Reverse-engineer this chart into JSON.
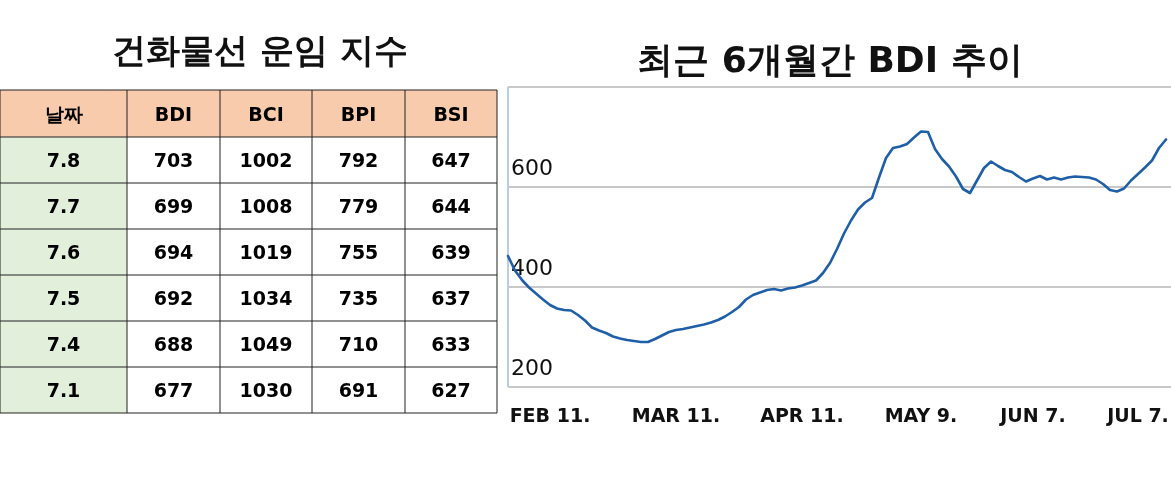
{
  "chart_data": [
    {
      "type": "heatmap",
      "title": "건화물선 운임 지수",
      "ylabel": "날짜",
      "categories": [
        "BDI",
        "BCI",
        "BPI",
        "BSI"
      ],
      "y_categories": [
        "7.8",
        "7.7",
        "7.6",
        "7.5",
        "7.4",
        "7.1"
      ],
      "cells": [
        [
          703,
          1002,
          792,
          647
        ],
        [
          699,
          1008,
          779,
          644
        ],
        [
          694,
          1019,
          755,
          639
        ],
        [
          692,
          1034,
          735,
          637
        ],
        [
          688,
          1049,
          710,
          633
        ],
        [
          677,
          1030,
          691,
          627
        ]
      ],
      "cell_labels": [
        [
          "703",
          "1002",
          "792",
          "647"
        ],
        [
          "699",
          "1008",
          "779",
          "644"
        ],
        [
          "694",
          "1019",
          "755",
          "639"
        ],
        [
          "692",
          "1034",
          "735",
          "637"
        ],
        [
          "688",
          "1049",
          "710",
          "633"
        ],
        [
          "677",
          "1030",
          "691",
          "627"
        ]
      ]
    },
    {
      "type": "line",
      "title": "최근 6개월간 BDI 추이",
      "ylim": [
        200,
        800
      ],
      "yticks": [
        200,
        400,
        600,
        {
          "value": 800,
          "label": null
        }
      ],
      "grid": "y",
      "marker": "none",
      "line_style": "solid",
      "categories": [
        null,
        null,
        null,
        null,
        null,
        null,
        "FEB 11.",
        null,
        null,
        null,
        null,
        null,
        null,
        null,
        null,
        null,
        null,
        null,
        null,
        null,
        null,
        null,
        null,
        null,
        "MAR 11.",
        null,
        null,
        null,
        null,
        null,
        null,
        null,
        null,
        null,
        null,
        null,
        null,
        null,
        null,
        null,
        null,
        null,
        "APR 11.",
        null,
        null,
        null,
        null,
        null,
        null,
        null,
        null,
        null,
        null,
        null,
        null,
        null,
        null,
        null,
        null,
        "MAY 9.",
        null,
        null,
        null,
        null,
        null,
        null,
        null,
        null,
        null,
        null,
        null,
        null,
        null,
        null,
        null,
        "JUN 7.",
        null,
        null,
        null,
        null,
        null,
        null,
        null,
        null,
        null,
        null,
        null,
        null,
        null,
        null,
        "JUL 7.",
        null,
        null,
        null,
        null
      ],
      "series": [
        {
          "color": "#1f5fa8",
          "values": [
            462,
            433,
            414,
            399,
            387,
            375,
            364,
            357,
            354,
            353,
            344,
            333,
            319,
            313,
            308,
            301,
            297,
            294,
            292,
            290,
            290,
            296,
            303,
            310,
            314,
            316,
            319,
            322,
            325,
            329,
            334,
            341,
            350,
            360,
            375,
            384,
            389,
            394,
            396,
            393,
            397,
            399,
            403,
            408,
            413,
            428,
            448,
            476,
            507,
            533,
            555,
            569,
            578,
            619,
            658,
            678,
            681,
            686,
            699,
            711,
            710,
            676,
            656,
            641,
            621,
            596,
            588,
            613,
            638,
            651,
            642,
            634,
            630,
            620,
            611,
            617,
            622,
            615,
            619,
            615,
            619,
            621,
            620,
            619,
            615,
            606,
            594,
            591,
            597,
            613,
            626,
            639,
            653,
            678,
            695
          ]
        }
      ]
    }
  ]
}
